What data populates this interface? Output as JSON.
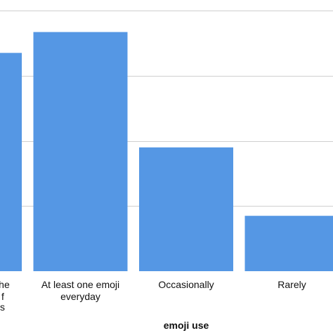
{
  "chart_data": {
    "type": "bar",
    "title": "",
    "xlabel": "emoji use",
    "ylabel": "",
    "categories": [
      {
        "lines": [
          "the",
          "f"
        ]
      },
      {
        "lines": [
          "At least one emoji",
          "everyday"
        ]
      },
      {
        "lines": [
          "Occasionally"
        ]
      },
      {
        "lines": [
          "Rarely"
        ]
      }
    ],
    "values": [
      33.5,
      36.7,
      19,
      8.5
    ],
    "ylim": [
      0,
      40
    ],
    "gridlines": [
      10,
      20,
      30,
      40
    ],
    "grid": true,
    "bar_color": "#5597e4",
    "grid_color": "#cfcfcf",
    "partial_label": "s"
  }
}
